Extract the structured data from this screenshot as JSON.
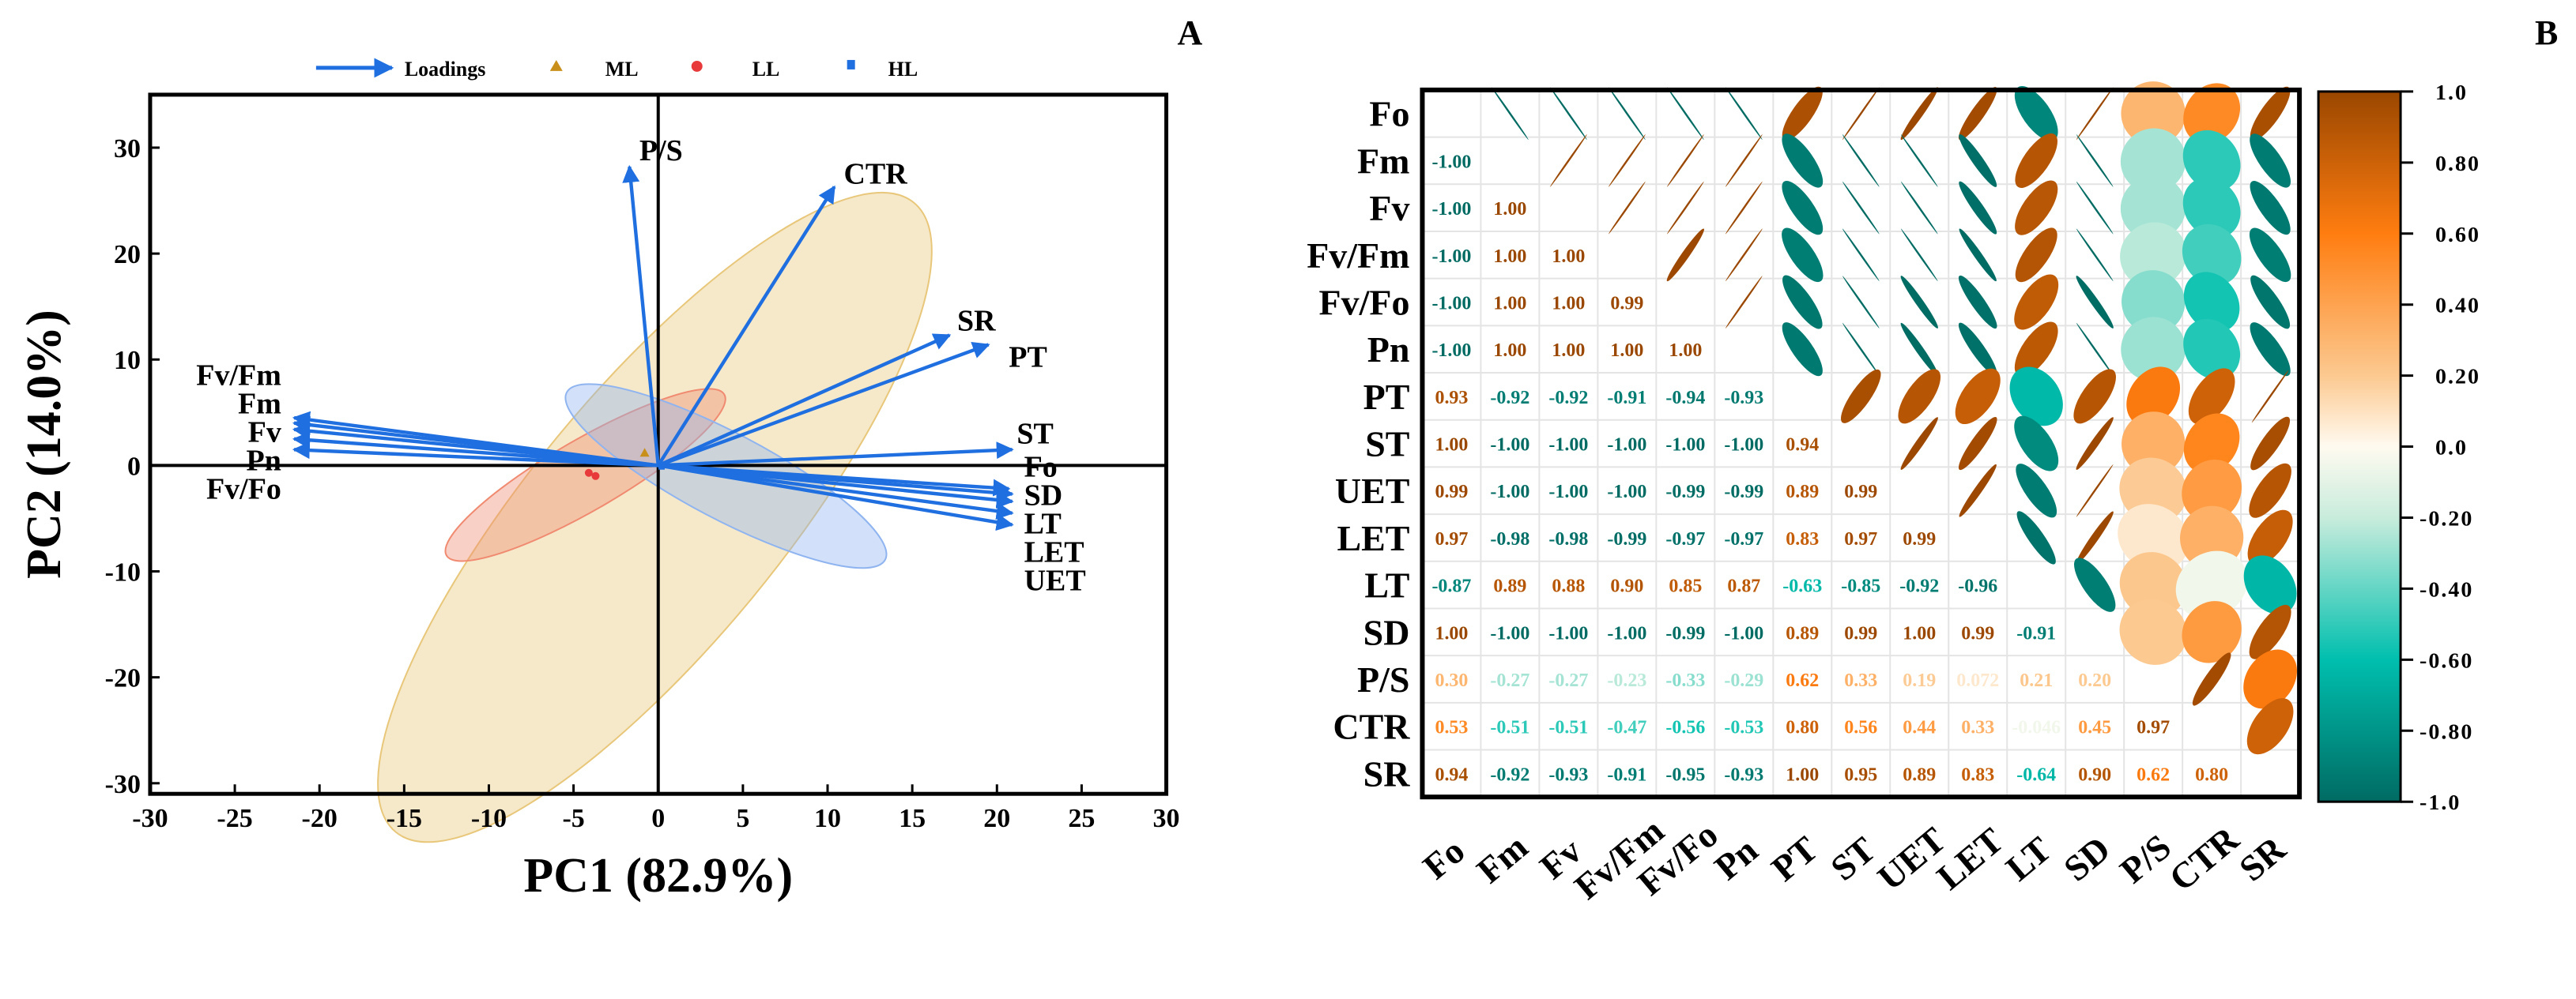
{
  "chart_data": [
    {
      "type": "scatter",
      "panel_label": "A",
      "xlabel": "PC1 (82.9%)",
      "ylabel": "PC2 (14.0%)",
      "xlim": [
        -30,
        30
      ],
      "ylim": [
        -31,
        35
      ],
      "xticks": [
        "-30",
        "-25",
        "-20",
        "-15",
        "-10",
        "-5",
        "0",
        "5",
        "10",
        "15",
        "20",
        "25",
        "30"
      ],
      "yticks": [
        "-30",
        "-20",
        "-10",
        "0",
        "10",
        "20",
        "30"
      ],
      "legend": [
        {
          "label": "Loadings",
          "marker": "arrow",
          "color": "#1f6fe0"
        },
        {
          "label": "ML",
          "marker": "triangle",
          "color": "#c8901a"
        },
        {
          "label": "LL",
          "marker": "circle",
          "color": "#e83a3a"
        },
        {
          "label": "HL",
          "marker": "square",
          "color": "#1f6fe0"
        }
      ],
      "loadings": [
        {
          "name": "P/S",
          "x": -1.7,
          "y": 28.2
        },
        {
          "name": "CTR",
          "x": 10.4,
          "y": 26.3
        },
        {
          "name": "SR",
          "x": 17.2,
          "y": 12.3
        },
        {
          "name": "PT",
          "x": 19.5,
          "y": 11.4
        },
        {
          "name": "ST",
          "x": 20.9,
          "y": 1.5
        },
        {
          "name": "Fo",
          "x": 20.7,
          "y": -2.2
        },
        {
          "name": "SD",
          "x": 20.9,
          "y": -2.7
        },
        {
          "name": "LT",
          "x": 20.9,
          "y": -3.4
        },
        {
          "name": "LET",
          "x": 20.9,
          "y": -4.5
        },
        {
          "name": "UET",
          "x": 20.9,
          "y": -5.6
        },
        {
          "name": "Fv/Fm",
          "x": -21.5,
          "y": 4.5
        },
        {
          "name": "Fm",
          "x": -21.5,
          "y": 4.0
        },
        {
          "name": "Fv",
          "x": -21.5,
          "y": 3.4
        },
        {
          "name": "Pn",
          "x": -21.5,
          "y": 2.5
        },
        {
          "name": "Fv/Fo",
          "x": -21.5,
          "y": 1.5
        }
      ],
      "groups": [
        {
          "name": "ML",
          "color": "#e8c77a",
          "points": [
            [
              -0.8,
              1.2
            ]
          ],
          "ellipse": {
            "cx": -0.2,
            "cy": -4.9,
            "major_end": [
              15.1,
              24.8
            ],
            "minor_ratio": 0.31
          }
        },
        {
          "name": "LL",
          "color": "#f08a70",
          "points": [
            [
              -4.1,
              -0.7
            ],
            [
              -3.7,
              -1.0
            ]
          ],
          "ellipse": {
            "cx": -4.3,
            "cy": -0.9,
            "major_end": [
              3.9,
              6.7
            ],
            "minor_ratio": 0.22
          }
        },
        {
          "name": "HL",
          "color": "#8fb4f0",
          "points": [
            [
              0.2,
              -0.1
            ]
          ],
          "ellipse": {
            "cx": 4.0,
            "cy": -1.0,
            "major_end": [
              13.4,
              -8.9
            ],
            "minor_ratio": 0.24
          }
        }
      ]
    },
    {
      "type": "heatmap",
      "panel_label": "B",
      "variables": [
        "Fo",
        "Fm",
        "Fv",
        "Fv/Fm",
        "Fv/Fo",
        "Pn",
        "PT",
        "ST",
        "UET",
        "LET",
        "LT",
        "SD",
        "P/S",
        "CTR",
        "SR"
      ],
      "lower": [
        [],
        [
          "-1.00"
        ],
        [
          "-1.00",
          "1.00"
        ],
        [
          "-1.00",
          "1.00",
          "1.00"
        ],
        [
          "-1.00",
          "1.00",
          "1.00",
          "0.99"
        ],
        [
          "-1.00",
          "1.00",
          "1.00",
          "1.00",
          "1.00"
        ],
        [
          "0.93",
          "-0.92",
          "-0.92",
          "-0.91",
          "-0.94",
          "-0.93"
        ],
        [
          "1.00",
          "-1.00",
          "-1.00",
          "-1.00",
          "-1.00",
          "-1.00",
          "0.94"
        ],
        [
          "0.99",
          "-1.00",
          "-1.00",
          "-1.00",
          "-0.99",
          "-0.99",
          "0.89",
          "0.99"
        ],
        [
          "0.97",
          "-0.98",
          "-0.98",
          "-0.99",
          "-0.97",
          "-0.97",
          "0.83",
          "0.97",
          "0.99"
        ],
        [
          "-0.87",
          "0.89",
          "0.88",
          "0.90",
          "0.85",
          "0.87",
          "-0.63",
          "-0.85",
          "-0.92",
          "-0.96"
        ],
        [
          "1.00",
          "-1.00",
          "-1.00",
          "-1.00",
          "-0.99",
          "-1.00",
          "0.89",
          "0.99",
          "1.00",
          "0.99",
          "-0.91"
        ],
        [
          "0.30",
          "-0.27",
          "-0.27",
          "-0.23",
          "-0.33",
          "-0.29",
          "0.62",
          "0.33",
          "0.19",
          "0.072",
          "0.21",
          "0.20"
        ],
        [
          "0.53",
          "-0.51",
          "-0.51",
          "-0.47",
          "-0.56",
          "-0.53",
          "0.80",
          "0.56",
          "0.44",
          "0.33",
          "-0.046",
          "0.45",
          "0.97"
        ],
        [
          "0.94",
          "-0.92",
          "-0.93",
          "-0.91",
          "-0.95",
          "-0.93",
          "1.00",
          "0.95",
          "0.89",
          "0.83",
          "-0.64",
          "0.90",
          "0.62",
          "0.80"
        ]
      ],
      "colorbar": {
        "range": [
          -1,
          1
        ],
        "ticks": [
          "1.0",
          "0.80",
          "0.60",
          "0.40",
          "0.20",
          "0.0",
          "-0.20",
          "-0.40",
          "-0.60",
          "-0.80",
          "-1.0"
        ],
        "stops": [
          {
            "v": -1.0,
            "color": "#006b63"
          },
          {
            "v": -0.6,
            "color": "#00bfae"
          },
          {
            "v": -0.2,
            "color": "#c8ecdc"
          },
          {
            "v": 0.0,
            "color": "#fffaf0"
          },
          {
            "v": 0.2,
            "color": "#fcc990"
          },
          {
            "v": 0.6,
            "color": "#ff7d10"
          },
          {
            "v": 1.0,
            "color": "#9a4700"
          }
        ]
      }
    }
  ]
}
